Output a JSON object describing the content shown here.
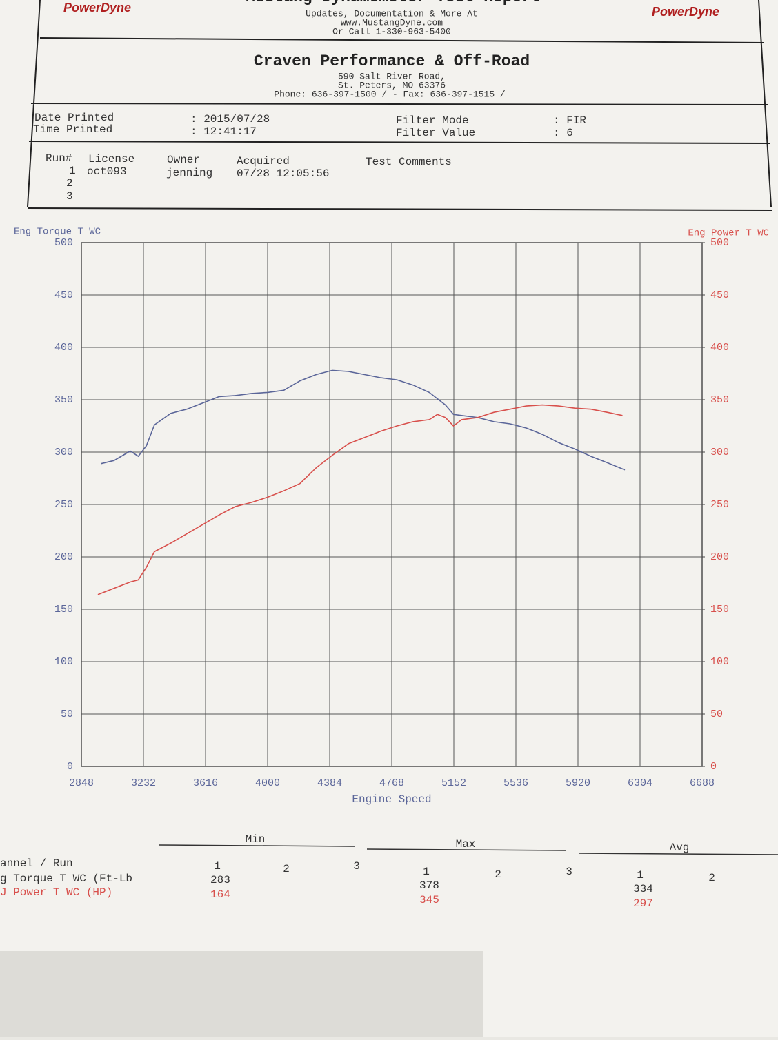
{
  "header": {
    "logo": "PowerDyne",
    "title": "Mustang Dynamometer Test Report",
    "lines": [
      "Updates, Documentation & More At",
      "www.MustangDyne.com",
      "Or Call 1-330-963-5400"
    ]
  },
  "shop": {
    "name": "Craven Performance & Off-Road",
    "address": [
      "590 Salt River Road,",
      "St. Peters, MO  63376",
      "Phone: 636-397-1500 /  - Fax: 636-397-1515 /"
    ]
  },
  "info": {
    "date_label": "Date Printed",
    "date": ": 2015/07/28",
    "time_label": "Time Printed",
    "time": ": 12:41:17",
    "filter_mode_label": "Filter Mode",
    "filter_mode": ": FIR",
    "filter_value_label": "Filter Value",
    "filter_value": ": 6"
  },
  "runs": {
    "headers": [
      "Run#",
      "License",
      "Owner",
      "Acquired",
      "Test Comments"
    ],
    "rows": [
      [
        "1",
        "oct093",
        "jenning",
        "07/28 12:05:56"
      ],
      [
        "2"
      ],
      [
        "3"
      ]
    ]
  },
  "chart_data": {
    "type": "line",
    "x_label": "Engine Speed",
    "xlim": [
      2848,
      6688
    ],
    "xticks": [
      2848,
      3232,
      3616,
      4000,
      4384,
      4768,
      5152,
      5536,
      5920,
      6304,
      6688
    ],
    "ylim": [
      0,
      500
    ],
    "yticks": [
      0,
      50,
      100,
      150,
      200,
      250,
      300,
      350,
      400,
      450,
      500
    ],
    "y2lim": [
      0,
      500
    ],
    "y2ticks": [
      0,
      50,
      100,
      150,
      200,
      250,
      300,
      350,
      400,
      450,
      500
    ],
    "grid": true,
    "series": [
      {
        "name": "Eng Torque T WC",
        "color": "#5b6699",
        "x": [
          2970,
          3050,
          3150,
          3200,
          3250,
          3300,
          3400,
          3500,
          3600,
          3700,
          3800,
          3900,
          4000,
          4100,
          4200,
          4300,
          4400,
          4500,
          4600,
          4700,
          4800,
          4900,
          5000,
          5100,
          5150,
          5200,
          5300,
          5400,
          5500,
          5600,
          5700,
          5800,
          5900,
          6000,
          6100,
          6210
        ],
        "values": [
          289,
          292,
          301,
          296,
          306,
          326,
          337,
          341,
          347,
          353,
          354,
          356,
          357,
          359,
          368,
          374,
          378,
          377,
          374,
          371,
          369,
          364,
          357,
          345,
          336,
          335,
          333,
          329,
          327,
          323,
          317,
          309,
          303,
          296,
          290,
          283
        ]
      },
      {
        "name": "Eng Power T WC",
        "color": "#d8504c",
        "axis": "y2",
        "x": [
          2950,
          3050,
          3150,
          3200,
          3250,
          3300,
          3400,
          3500,
          3600,
          3700,
          3800,
          3900,
          4000,
          4100,
          4200,
          4300,
          4400,
          4500,
          4600,
          4700,
          4800,
          4900,
          5000,
          5050,
          5100,
          5150,
          5200,
          5300,
          5400,
          5500,
          5600,
          5700,
          5800,
          5900,
          6000,
          6100,
          6195
        ],
        "values": [
          164,
          170,
          176,
          178,
          190,
          205,
          213,
          222,
          231,
          240,
          248,
          252,
          257,
          263,
          270,
          285,
          297,
          308,
          314,
          320,
          325,
          329,
          331,
          336,
          333,
          325,
          331,
          333,
          338,
          341,
          344,
          345,
          344,
          342,
          341,
          338,
          335
        ]
      }
    ]
  },
  "summary": {
    "groups": [
      "Min",
      "Max",
      "Avg"
    ],
    "channel_header": "annel / Run",
    "runs": [
      "1",
      "2",
      "3"
    ],
    "rows": [
      {
        "label": "g Torque T WC (Ft-Lb",
        "min": 283,
        "max": 378,
        "avg": 334
      },
      {
        "label": "J Power T WC (HP)",
        "min": 164,
        "max": 345,
        "avg": 297
      }
    ]
  }
}
